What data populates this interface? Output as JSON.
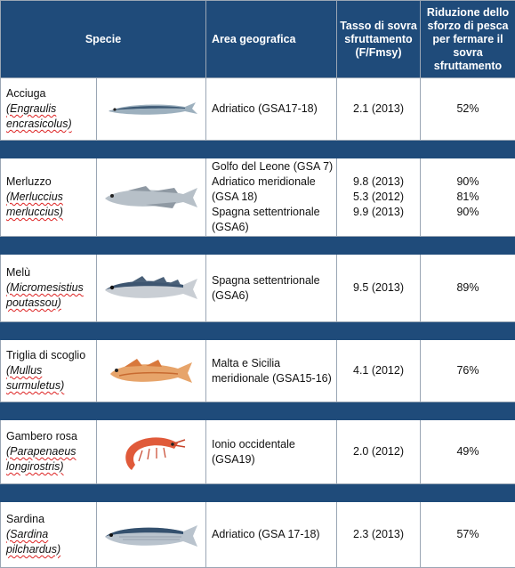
{
  "header": {
    "species": "Specie",
    "area": "Area geografica",
    "rate": "Tasso di sovra sfruttamento (F/Fmsy)",
    "reduction": "Riduzione dello sforzo di pesca per fermare il sovra sfruttamento"
  },
  "rows": [
    {
      "common": "Acciuga",
      "sci": "(Engraulis encrasicolus)",
      "icon": "anchovy-illustration",
      "area": [
        "Adriatico (GSA17-18)"
      ],
      "rate": [
        "2.1 (2013)"
      ],
      "reduction": [
        "52%"
      ]
    },
    {
      "common": "Merluzzo",
      "sci": "(Merluccius merluccius)",
      "icon": "hake-illustration",
      "area": [
        "Golfo del Leone (GSA 7)",
        "Adriatico meridionale (GSA 18)",
        "Spagna settentrionale (GSA6)"
      ],
      "rate": [
        "9.8 (2013)",
        "5.3 (2012)",
        "9.9 (2013)"
      ],
      "reduction": [
        "90%",
        "81%",
        "90%"
      ]
    },
    {
      "common": "Melù",
      "sci": "(Micromesistius poutassou)",
      "icon": "blue-whiting-illustration",
      "area": [
        "Spagna settentrionale (GSA6)"
      ],
      "rate": [
        "9.5 (2013)"
      ],
      "reduction": [
        "89%"
      ]
    },
    {
      "common": "Triglia di scoglio",
      "sci": "(Mullus surmuletus)",
      "icon": "red-mullet-illustration",
      "area": [
        "Malta e Sicilia meridionale (GSA15-16)"
      ],
      "rate": [
        "4.1 (2012)"
      ],
      "reduction": [
        "76%"
      ]
    },
    {
      "common": "Gambero rosa",
      "sci": "(Parapenaeus longirostris)",
      "icon": "shrimp-illustration",
      "area": [
        "Ionio occidentale (GSA19)"
      ],
      "rate": [
        "2.0 (2012)"
      ],
      "reduction": [
        "49%"
      ]
    },
    {
      "common": "Sardina",
      "sci": "(Sardina pilchardus)",
      "icon": "sardine-illustration",
      "area": [
        "Adriatico (GSA 17-18)"
      ],
      "rate": [
        "2.3 (2013)"
      ],
      "reduction": [
        "57%"
      ]
    }
  ],
  "colors": {
    "header": "#1f4b7a",
    "border": "#9aa6b4"
  }
}
